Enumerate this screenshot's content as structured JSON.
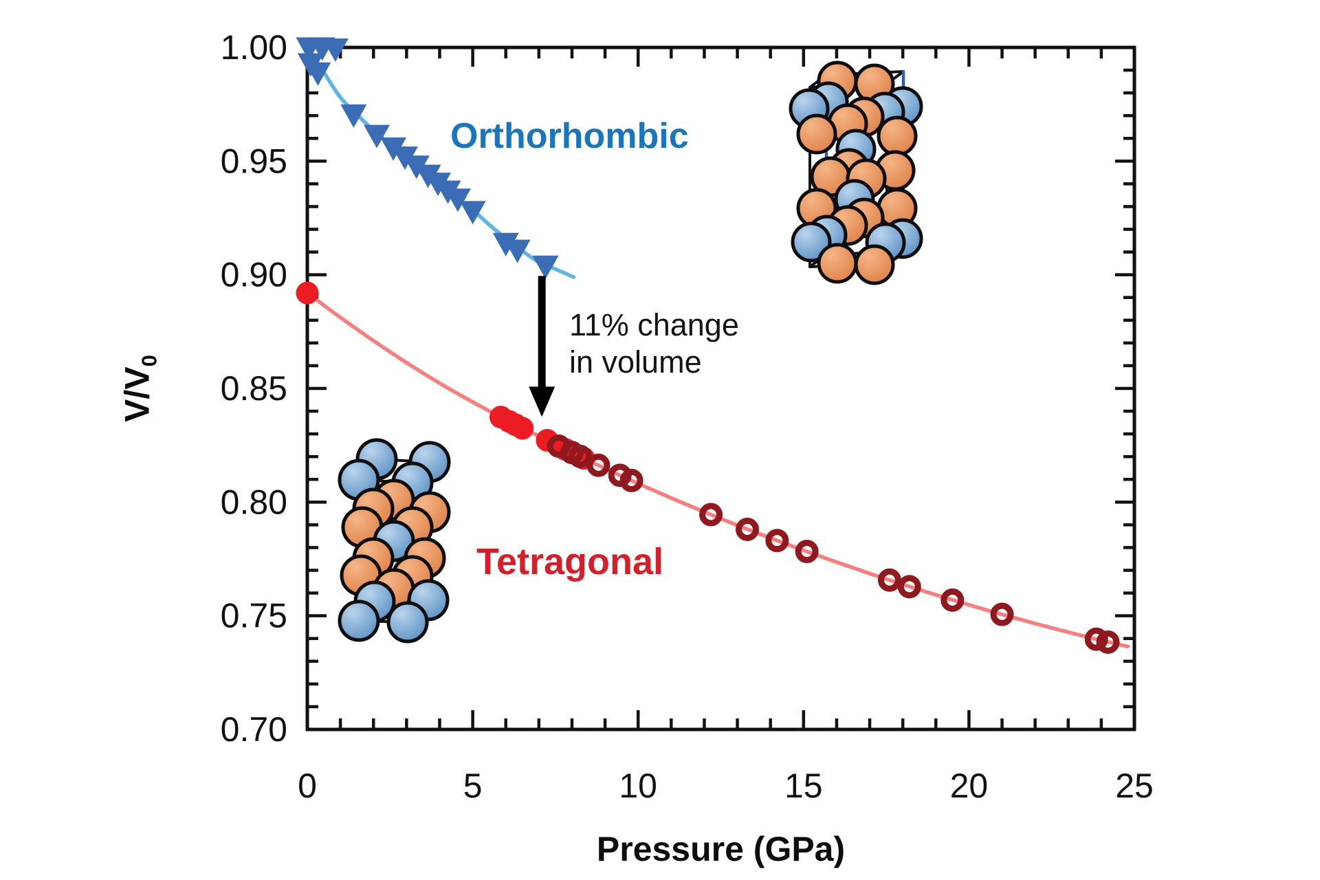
{
  "colors": {
    "background": "#FFFFFF",
    "axis": "#111111",
    "tick_label": "#111111",
    "orthorhombic_marker": "#3A6DB5",
    "orthorhombic_line": "#5FB4E5",
    "orthorhombic_label": "#1B75BC",
    "tetragonal_filled_marker": "#EB1C24",
    "tetragonal_line": "#F48080",
    "tetragonal_open_marker": "#8F191E",
    "tetragonal_label": "#D4202A",
    "arrow": "#000000",
    "atom_orange": "#DE8147",
    "atom_orange_highlight": "#F5B587",
    "atom_blue": "#5B91C4",
    "atom_blue_highlight": "#BAD4EC",
    "cell_edge_black": "#111111",
    "cell_edge_blue": "#3A5CA8"
  },
  "chart_data": {
    "type": "scatter",
    "title": "",
    "xlabel": "Pressure (GPa)",
    "ylabel_main": "V/V",
    "ylabel_sub": "0",
    "xlim": [
      0,
      25
    ],
    "ylim": [
      0.7,
      1.0
    ],
    "x_major_ticks": [
      0,
      5,
      10,
      15,
      20,
      25
    ],
    "x_tick_labels": [
      "0",
      "5",
      "10",
      "15",
      "20",
      "25"
    ],
    "x_minor_step": 1,
    "y_major_ticks": [
      0.7,
      0.75,
      0.8,
      0.85,
      0.9,
      0.95,
      1.0
    ],
    "y_tick_labels": [
      "0.70",
      "0.75",
      "0.80",
      "0.85",
      "0.90",
      "0.95",
      "1.00"
    ],
    "y_minor_step": 0.01,
    "grid": false,
    "legend_position": "none (phase names written inline on plot)",
    "series": [
      {
        "name": "Orthorhombic fit line",
        "type": "line",
        "color_key": "orthorhombic_line",
        "points": [
          [
            0,
            1.0
          ],
          [
            0.5,
            0.989
          ],
          [
            1,
            0.978
          ],
          [
            1.5,
            0.9705
          ],
          [
            2,
            0.9635
          ],
          [
            2.5,
            0.9575
          ],
          [
            3,
            0.9515
          ],
          [
            3.5,
            0.9455
          ],
          [
            4,
            0.9395
          ],
          [
            4.5,
            0.934
          ],
          [
            5,
            0.9285
          ],
          [
            5.5,
            0.922
          ],
          [
            6,
            0.916
          ],
          [
            6.5,
            0.9105
          ],
          [
            7,
            0.9055
          ],
          [
            7.5,
            0.9025
          ],
          [
            8.05,
            0.899
          ]
        ]
      },
      {
        "name": "Orthorhombic data",
        "type": "scatter",
        "marker": "triangle-down",
        "color_key": "orthorhombic_marker",
        "points": [
          [
            0.05,
            1.0005
          ],
          [
            0.45,
            1.0005
          ],
          [
            0.85,
            1.0
          ],
          [
            0.1,
            0.9935
          ],
          [
            0.32,
            0.9895
          ],
          [
            1.4,
            0.971
          ],
          [
            2.1,
            0.962
          ],
          [
            2.6,
            0.9565
          ],
          [
            2.95,
            0.9525
          ],
          [
            3.3,
            0.9485
          ],
          [
            3.65,
            0.9445
          ],
          [
            3.95,
            0.941
          ],
          [
            4.25,
            0.9375
          ],
          [
            4.55,
            0.934
          ],
          [
            5.0,
            0.9285
          ],
          [
            6.0,
            0.9145
          ],
          [
            6.35,
            0.9115
          ],
          [
            7.2,
            0.9045
          ]
        ]
      },
      {
        "name": "Tetragonal fit line",
        "type": "line",
        "color_key": "tetragonal_line",
        "points": [
          [
            0,
            0.892
          ],
          [
            1,
            0.8812
          ],
          [
            2,
            0.871
          ],
          [
            3,
            0.8613
          ],
          [
            4,
            0.8523
          ],
          [
            5,
            0.844
          ],
          [
            6,
            0.8363
          ],
          [
            7,
            0.829
          ],
          [
            8,
            0.8218
          ],
          [
            9,
            0.8148
          ],
          [
            10,
            0.8082
          ],
          [
            11,
            0.8018
          ],
          [
            12,
            0.7957
          ],
          [
            13,
            0.7898
          ],
          [
            14,
            0.7842
          ],
          [
            15,
            0.7788
          ],
          [
            16,
            0.7736
          ],
          [
            17,
            0.7686
          ],
          [
            18,
            0.7638
          ],
          [
            19,
            0.7592
          ],
          [
            20,
            0.7548
          ],
          [
            21,
            0.7506
          ],
          [
            22,
            0.7466
          ],
          [
            23,
            0.7428
          ],
          [
            24,
            0.7392
          ],
          [
            24.8,
            0.7365
          ]
        ]
      },
      {
        "name": "Tetragonal data (filled symbols)",
        "type": "scatter",
        "marker": "circle-filled",
        "color_key": "tetragonal_filled_marker",
        "points": [
          [
            0,
            0.892
          ],
          [
            5.85,
            0.8374
          ],
          [
            6.1,
            0.8355
          ],
          [
            6.3,
            0.834
          ],
          [
            6.5,
            0.8325
          ],
          [
            7.25,
            0.8272
          ],
          [
            7.8,
            0.8232
          ],
          [
            8.35,
            0.8193
          ]
        ]
      },
      {
        "name": "Tetragonal data (open symbols)",
        "type": "scatter",
        "marker": "circle-open",
        "color_key": "tetragonal_open_marker",
        "points": [
          [
            7.6,
            0.8246
          ],
          [
            8.0,
            0.8218
          ],
          [
            8.25,
            0.8201
          ],
          [
            8.8,
            0.8162
          ],
          [
            9.45,
            0.8118
          ],
          [
            9.8,
            0.8095
          ],
          [
            12.2,
            0.7945
          ],
          [
            13.3,
            0.788
          ],
          [
            14.2,
            0.7831
          ],
          [
            15.1,
            0.7783
          ],
          [
            17.6,
            0.7657
          ],
          [
            18.2,
            0.7628
          ],
          [
            19.5,
            0.7569
          ],
          [
            21.0,
            0.7506
          ],
          [
            23.85,
            0.7397
          ],
          [
            24.2,
            0.7384
          ]
        ]
      }
    ],
    "annotations": {
      "orthorhombic": {
        "text": "Orthorhombic"
      },
      "tetragonal": {
        "text": "Tetragonal"
      },
      "note_line1": "11% change",
      "note_line2": "in volume",
      "arrow": {
        "x": 7.09,
        "v_from": 0.8995,
        "v_to": 0.8375
      }
    }
  },
  "structures": [
    {
      "name": "orthorhombic-unit-cell",
      "atom_radius": 27,
      "box_black": [
        [
          1178,
          127,
          1290,
          122
        ],
        [
          1290,
          122,
          1290,
          384
        ],
        [
          1290,
          384,
          1178,
          388
        ],
        [
          1178,
          388,
          1178,
          127
        ],
        [
          1178,
          127,
          1202,
          109
        ],
        [
          1290,
          122,
          1314,
          104
        ],
        [
          1202,
          109,
          1314,
          104
        ],
        [
          1178,
          388,
          1202,
          370
        ],
        [
          1290,
          384,
          1314,
          366
        ],
        [
          1202,
          370,
          1314,
          366
        ]
      ],
      "box_blue": [
        [
          1202,
          109,
          1202,
          370
        ],
        [
          1314,
          104,
          1314,
          366
        ]
      ],
      "atoms": [
        [
          1218,
          118,
          "o"
        ],
        [
          1272,
          122,
          "o"
        ],
        [
          1205,
          148,
          "b"
        ],
        [
          1313,
          155,
          "b"
        ],
        [
          1177,
          158,
          "b"
        ],
        [
          1287,
          163,
          "b"
        ],
        [
          1257,
          170,
          "o"
        ],
        [
          1233,
          180,
          "o"
        ],
        [
          1188,
          195,
          "o"
        ],
        [
          1305,
          198,
          "o"
        ],
        [
          1245,
          217,
          "b"
        ],
        [
          1235,
          245,
          "o"
        ],
        [
          1302,
          248,
          "o"
        ],
        [
          1208,
          257,
          "o"
        ],
        [
          1260,
          260,
          "o"
        ],
        [
          1243,
          290,
          "b"
        ],
        [
          1188,
          303,
          "o"
        ],
        [
          1305,
          303,
          "o"
        ],
        [
          1257,
          317,
          "o"
        ],
        [
          1233,
          328,
          "o"
        ],
        [
          1203,
          342,
          "b"
        ],
        [
          1313,
          347,
          "b"
        ],
        [
          1180,
          352,
          "b"
        ],
        [
          1288,
          353,
          "b"
        ],
        [
          1218,
          383,
          "o"
        ],
        [
          1272,
          385,
          "o"
        ]
      ]
    },
    {
      "name": "tetragonal-unit-cell",
      "atom_radius": 28,
      "box_black": [
        [
          548,
          668,
          625,
          672
        ],
        [
          625,
          672,
          623,
          873
        ],
        [
          623,
          873,
          545,
          875
        ],
        [
          545,
          875,
          548,
          668
        ],
        [
          522,
          698,
          600,
          702
        ],
        [
          600,
          702,
          593,
          905
        ],
        [
          593,
          905,
          522,
          903
        ],
        [
          522,
          903,
          522,
          698
        ],
        [
          522,
          698,
          548,
          668
        ],
        [
          600,
          702,
          625,
          672
        ],
        [
          522,
          903,
          545,
          875
        ],
        [
          593,
          905,
          623,
          873
        ]
      ],
      "box_blue": [],
      "atoms": [
        [
          548,
          668,
          "b"
        ],
        [
          625,
          672,
          "b"
        ],
        [
          522,
          698,
          "b"
        ],
        [
          600,
          702,
          "b"
        ],
        [
          573,
          727,
          "o"
        ],
        [
          543,
          740,
          "o"
        ],
        [
          625,
          745,
          "o"
        ],
        [
          527,
          767,
          "o"
        ],
        [
          600,
          767,
          "o"
        ],
        [
          573,
          787,
          "b"
        ],
        [
          543,
          812,
          "o"
        ],
        [
          618,
          812,
          "o"
        ],
        [
          525,
          837,
          "o"
        ],
        [
          600,
          838,
          "o"
        ],
        [
          573,
          857,
          "o"
        ],
        [
          623,
          873,
          "b"
        ],
        [
          545,
          875,
          "b"
        ],
        [
          522,
          903,
          "b"
        ],
        [
          593,
          905,
          "b"
        ]
      ]
    }
  ]
}
